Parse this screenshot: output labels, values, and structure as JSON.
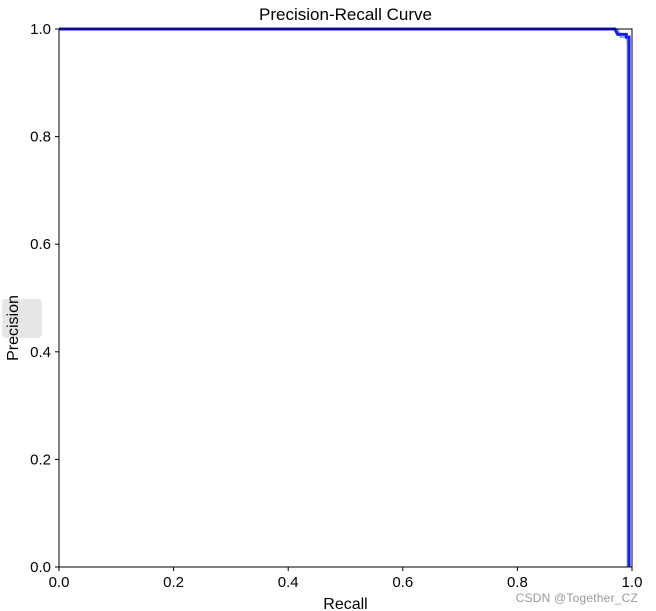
{
  "chart_data": {
    "type": "line",
    "title": "Precision-Recall Curve",
    "xlabel": "Recall",
    "ylabel": "Precision",
    "xlim": [
      0.0,
      1.0
    ],
    "ylim": [
      0.0,
      1.0
    ],
    "xticks": [
      "0.0",
      "0.2",
      "0.4",
      "0.6",
      "0.8",
      "1.0"
    ],
    "yticks": [
      "0.0",
      "0.2",
      "0.4",
      "0.6",
      "0.8",
      "1.0"
    ],
    "grid": false,
    "series": [
      {
        "color": "#1a1aff",
        "x": [
          0.0,
          0.97,
          0.975,
          0.99,
          0.99,
          0.995,
          0.995,
          0.995
        ],
        "y": [
          1.0,
          1.0,
          0.99,
          0.99,
          0.985,
          0.985,
          0.97,
          0.0
        ]
      },
      {
        "color": "#6fa8c8",
        "x": [
          0.0,
          0.975,
          0.98,
          0.99,
          0.992,
          0.992
        ],
        "y": [
          1.0,
          1.0,
          0.985,
          0.985,
          0.975,
          0.0
        ]
      }
    ]
  },
  "watermark": "CSDN @Together_CZ"
}
